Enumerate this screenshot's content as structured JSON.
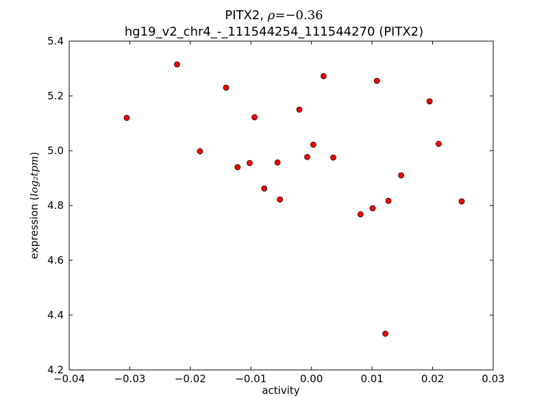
{
  "title": {
    "line1_prefix": "PITX2, ",
    "line1_rho": "ρ",
    "line1_eq": "=−0.36",
    "line2": "hg19_v2_chr4_-_111544254_111544270 (PITX2)"
  },
  "axes": {
    "xlabel": "activity",
    "ylabel_prefix": "expression (",
    "ylabel_math": "log₂tpm",
    "ylabel_suffix": ")"
  },
  "colors": {
    "point_fill": "#ff0000",
    "point_edge": "#000000",
    "axes": "#000000"
  },
  "chart_data": {
    "type": "scatter",
    "title": "PITX2, ρ=−0.36 / hg19_v2_chr4_-_111544254_111544270 (PITX2)",
    "xlabel": "activity",
    "ylabel": "expression (log2 tpm)",
    "xlim": [
      -0.04,
      0.03
    ],
    "ylim": [
      4.2,
      5.4
    ],
    "xticks": [
      -0.04,
      -0.03,
      -0.02,
      -0.01,
      0.0,
      0.01,
      0.02,
      0.03
    ],
    "xtick_labels": [
      "−0.04",
      "−0.03",
      "−0.02",
      "−0.01",
      "0.00",
      "0.01",
      "0.02",
      "0.03"
    ],
    "yticks": [
      4.2,
      4.4,
      4.6,
      4.8,
      5.0,
      5.2,
      5.4
    ],
    "ytick_labels": [
      "4.2",
      "4.4",
      "4.6",
      "4.8",
      "5.0",
      "5.2",
      "5.4"
    ],
    "grid": false,
    "points": [
      {
        "x": -0.0305,
        "y": 5.12
      },
      {
        "x": -0.0222,
        "y": 5.315
      },
      {
        "x": -0.0184,
        "y": 4.998
      },
      {
        "x": -0.0141,
        "y": 5.23
      },
      {
        "x": -0.0122,
        "y": 4.94
      },
      {
        "x": -0.0102,
        "y": 4.955
      },
      {
        "x": -0.0094,
        "y": 5.122
      },
      {
        "x": -0.0078,
        "y": 4.862
      },
      {
        "x": -0.0056,
        "y": 4.957
      },
      {
        "x": -0.0052,
        "y": 4.822
      },
      {
        "x": -0.002,
        "y": 5.15
      },
      {
        "x": -0.0007,
        "y": 4.977
      },
      {
        "x": 0.0003,
        "y": 5.022
      },
      {
        "x": 0.002,
        "y": 5.272
      },
      {
        "x": 0.0036,
        "y": 4.975
      },
      {
        "x": 0.0081,
        "y": 4.768
      },
      {
        "x": 0.0101,
        "y": 4.79
      },
      {
        "x": 0.0108,
        "y": 5.255
      },
      {
        "x": 0.0122,
        "y": 4.332
      },
      {
        "x": 0.0127,
        "y": 4.817
      },
      {
        "x": 0.0148,
        "y": 4.91
      },
      {
        "x": 0.0195,
        "y": 5.18
      },
      {
        "x": 0.021,
        "y": 5.025
      },
      {
        "x": 0.0248,
        "y": 4.815
      }
    ]
  }
}
